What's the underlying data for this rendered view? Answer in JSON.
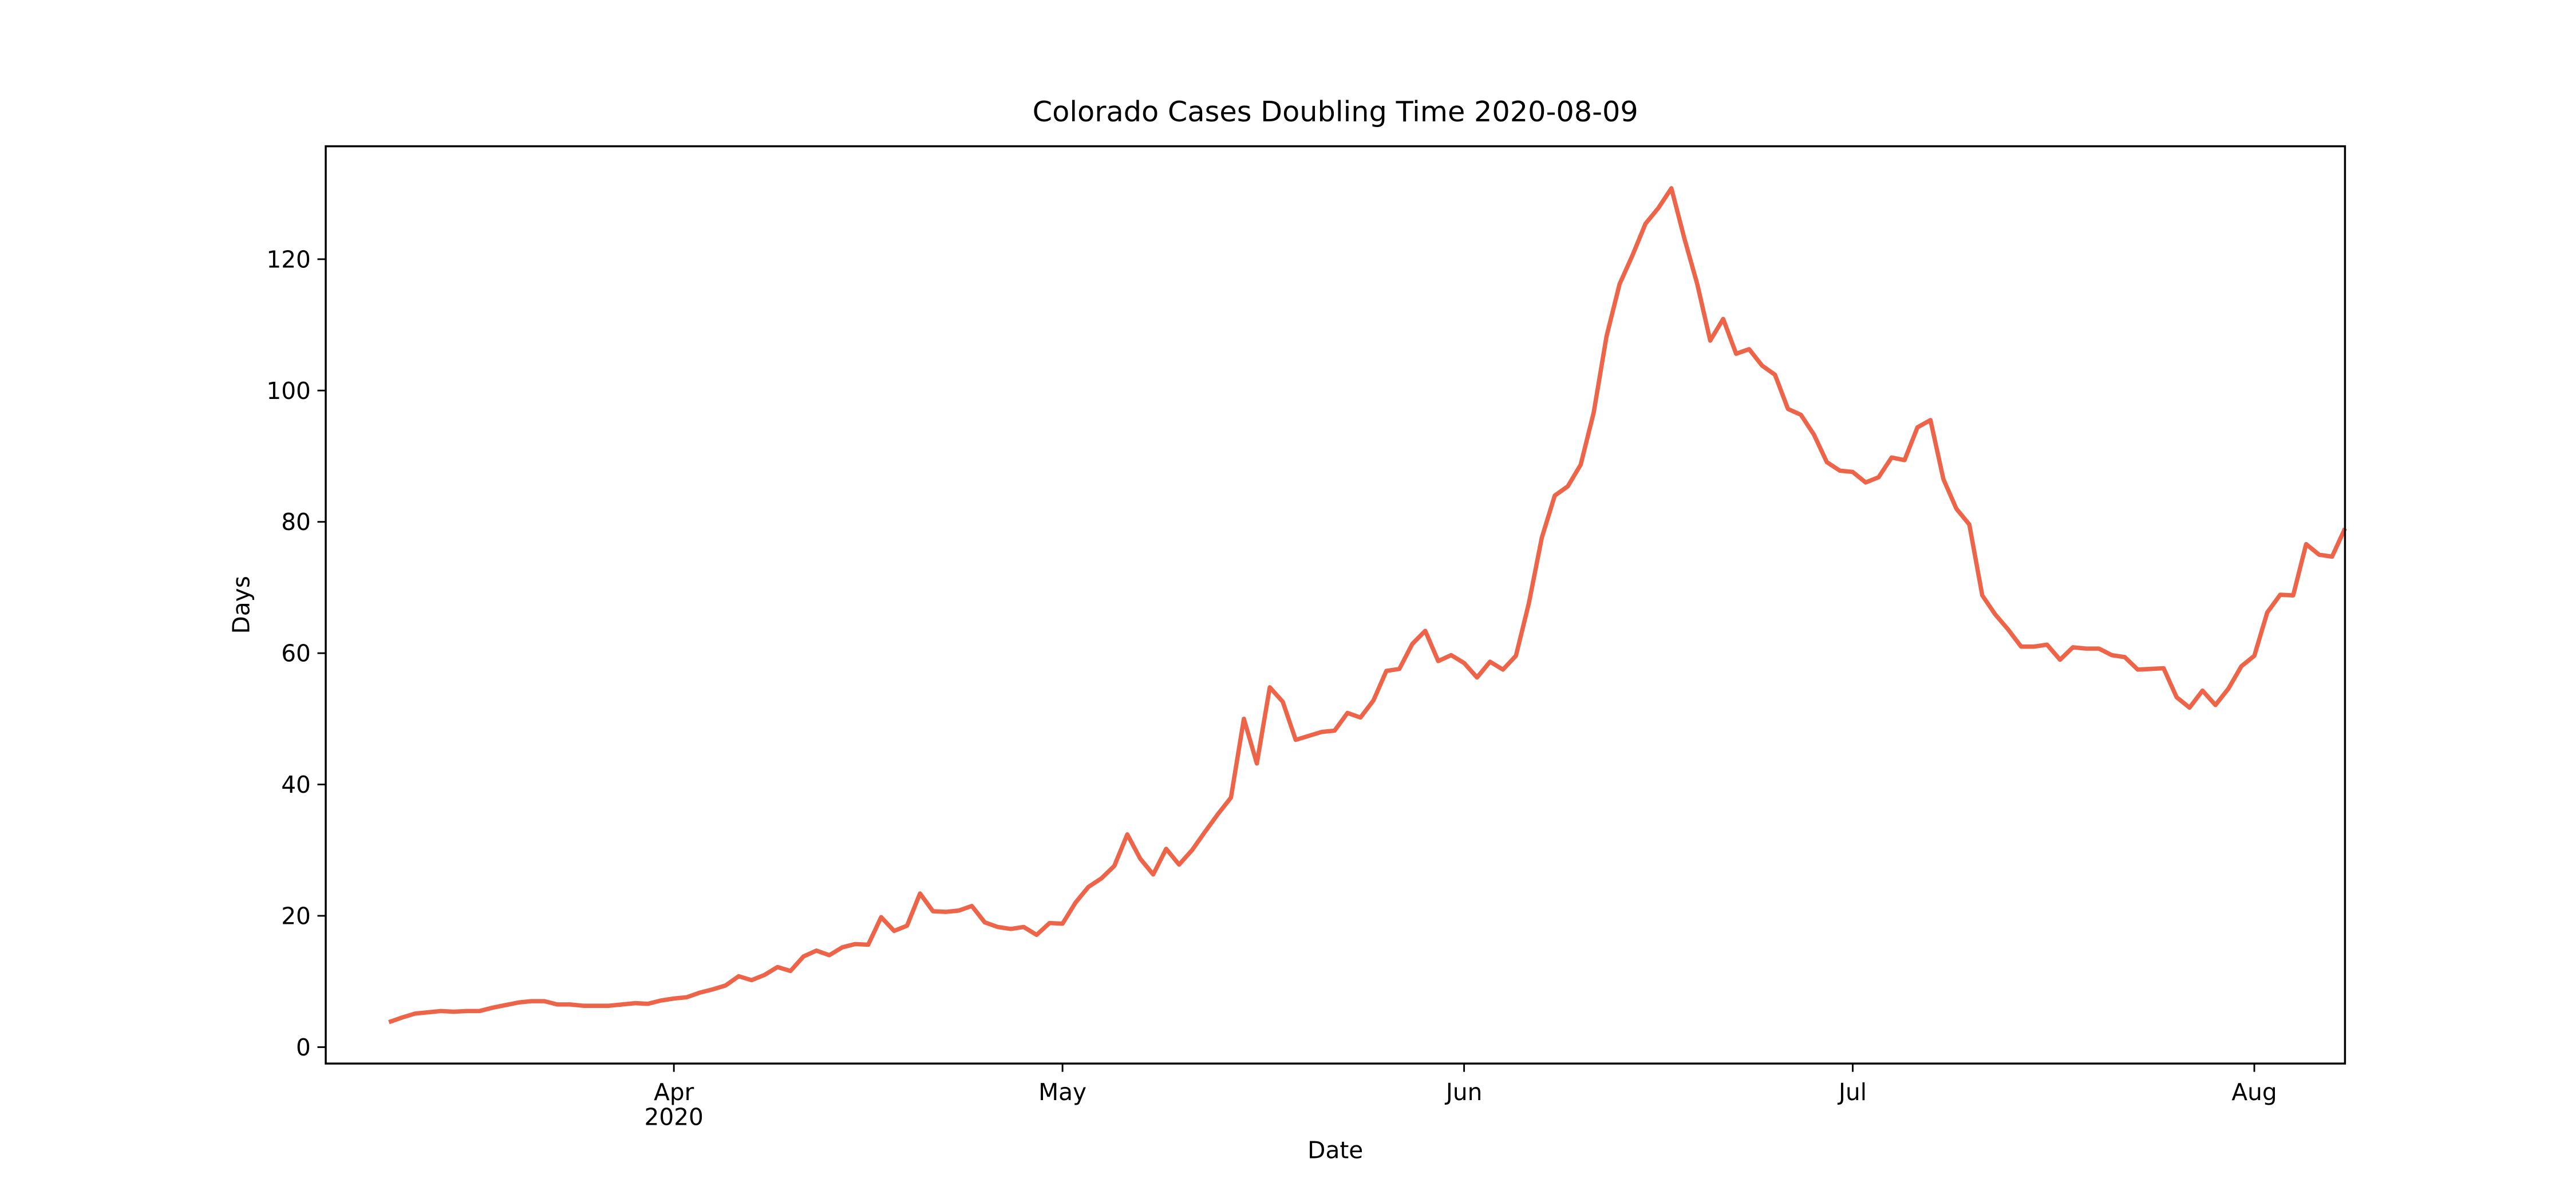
{
  "chart_data": {
    "type": "line",
    "title": "Colorado Cases Doubling Time 2020-08-09",
    "xlabel": "Date",
    "ylabel": "Days",
    "year_label": "2020",
    "categories": [
      null,
      null,
      null,
      null,
      null,
      null,
      null,
      null,
      null,
      null,
      null,
      null,
      null,
      null,
      null,
      null,
      null,
      null,
      null,
      null,
      null,
      null,
      "Apr",
      null,
      null,
      null,
      null,
      null,
      null,
      null,
      null,
      null,
      null,
      null,
      null,
      null,
      null,
      null,
      null,
      null,
      null,
      null,
      null,
      null,
      null,
      null,
      null,
      null,
      null,
      null,
      null,
      null,
      "May",
      null,
      null,
      null,
      null,
      null,
      null,
      null,
      null,
      null,
      null,
      null,
      null,
      null,
      null,
      null,
      null,
      null,
      null,
      null,
      null,
      null,
      null,
      null,
      null,
      null,
      null,
      null,
      null,
      null,
      null,
      "Jun",
      null,
      null,
      null,
      null,
      null,
      null,
      null,
      null,
      null,
      null,
      null,
      null,
      null,
      null,
      null,
      null,
      null,
      null,
      null,
      null,
      null,
      null,
      null,
      null,
      null,
      null,
      null,
      null,
      null,
      "Jul",
      null,
      null,
      null,
      null,
      null,
      null,
      null,
      null,
      null,
      null,
      null,
      null,
      null,
      null,
      null,
      null,
      null,
      null,
      null,
      null,
      null,
      null,
      null,
      null,
      null,
      null,
      null,
      null,
      null,
      null,
      "Aug",
      null,
      null,
      null,
      null,
      null,
      null,
      null
    ],
    "values": [
      3.8,
      4.5,
      5.1,
      5.3,
      5.5,
      5.4,
      5.5,
      5.5,
      6.0,
      6.4,
      6.8,
      7.0,
      7.0,
      6.5,
      6.5,
      6.3,
      6.3,
      6.3,
      6.5,
      6.7,
      6.6,
      7.1,
      7.4,
      7.6,
      8.3,
      8.8,
      9.4,
      10.8,
      10.2,
      11.0,
      12.2,
      11.6,
      13.8,
      14.7,
      14.0,
      15.2,
      15.7,
      15.6,
      19.8,
      17.7,
      18.5,
      23.4,
      20.7,
      20.6,
      20.8,
      21.5,
      19.0,
      18.3,
      18.0,
      18.3,
      17.1,
      18.9,
      18.8,
      22.0,
      24.4,
      25.7,
      27.6,
      32.4,
      28.7,
      26.3,
      30.2,
      27.8,
      30.0,
      32.8,
      35.5,
      38.0,
      50.0,
      43.2,
      54.8,
      52.6,
      46.8,
      47.4,
      48.0,
      48.2,
      50.9,
      50.2,
      52.8,
      57.3,
      57.6,
      61.4,
      63.4,
      58.8,
      59.7,
      58.5,
      56.3,
      58.7,
      57.5,
      59.6,
      67.6,
      77.6,
      84.0,
      85.4,
      88.7,
      96.6,
      108.3,
      116.2,
      120.6,
      125.4,
      127.8,
      130.8,
      123.2,
      116.2,
      107.6,
      110.9,
      105.6,
      106.3,
      103.8,
      102.4,
      97.2,
      96.3,
      93.3,
      89.1,
      87.8,
      87.6,
      86.0,
      86.8,
      89.8,
      89.4,
      94.4,
      95.5,
      86.5,
      82.0,
      79.6,
      68.8,
      65.9,
      63.6,
      61.0,
      61.0,
      61.3,
      59.0,
      60.9,
      60.7,
      60.7,
      59.7,
      59.4,
      57.5,
      57.6,
      57.7,
      53.3,
      51.7,
      54.3,
      52.1,
      54.6,
      58.0,
      59.6,
      66.2,
      68.9,
      68.8,
      76.6,
      75.0,
      74.7,
      79.0
    ],
    "color": "#ee6448",
    "ylim": [
      -2.5,
      137.2
    ],
    "yticks": [
      0,
      20,
      40,
      60,
      80,
      100,
      120
    ]
  }
}
